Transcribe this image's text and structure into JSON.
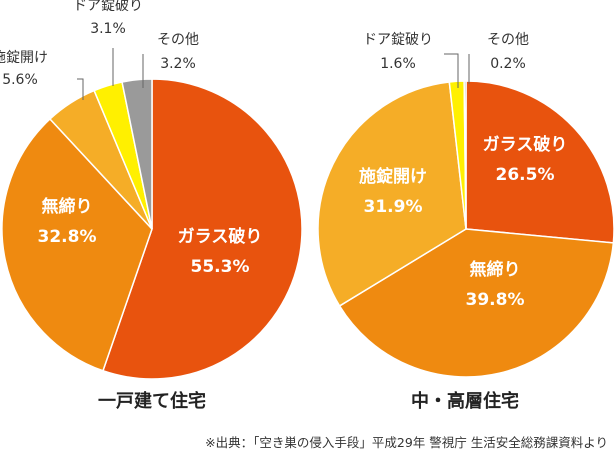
{
  "chart_data": [
    {
      "type": "pie",
      "title": "一戸建て住宅",
      "slices": [
        {
          "name": "ガラス破り",
          "value": 55.3,
          "value_label": "55.3%",
          "color": "#e8530e",
          "label_inside": true
        },
        {
          "name": "無締り",
          "value": 32.8,
          "value_label": "32.8%",
          "color": "#ef8a10",
          "label_inside": true
        },
        {
          "name": "施錠開け",
          "value": 5.6,
          "value_label": "5.6%",
          "color": "#f5ad27",
          "label_inside": false
        },
        {
          "name": "ドア錠破り",
          "value": 3.1,
          "value_label": "3.1%",
          "color": "#fff000",
          "label_inside": false
        },
        {
          "name": "その他",
          "value": 3.2,
          "value_label": "3.2%",
          "color": "#9a9a9a",
          "label_inside": false
        }
      ]
    },
    {
      "type": "pie",
      "title": "中・高層住宅",
      "slices": [
        {
          "name": "ガラス破り",
          "value": 26.5,
          "value_label": "26.5%",
          "color": "#e8530e",
          "label_inside": true
        },
        {
          "name": "無締り",
          "value": 39.8,
          "value_label": "39.8%",
          "color": "#ef8a10",
          "label_inside": true
        },
        {
          "name": "施錠開け",
          "value": 31.9,
          "value_label": "31.9%",
          "color": "#f5ad27",
          "label_inside": true
        },
        {
          "name": "ドア錠破り",
          "value": 1.6,
          "value_label": "1.6%",
          "color": "#fff000",
          "label_inside": false
        },
        {
          "name": "その他",
          "value": 0.2,
          "value_label": "0.2%",
          "color": "#9a9a9a",
          "label_inside": false
        }
      ]
    }
  ],
  "source_note": "※出典：「空き巣の侵入手段」平成29年 警視庁 生活安全総務課資料より"
}
